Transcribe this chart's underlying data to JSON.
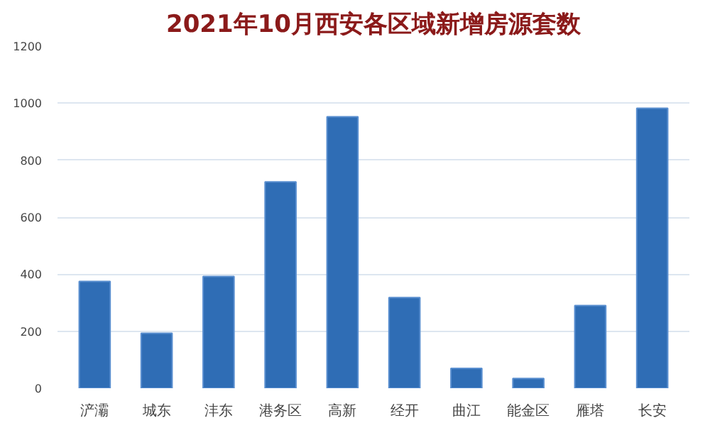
{
  "chart_data": {
    "type": "bar",
    "title": "2021年10月西安各区域新增房源套数",
    "categories": [
      "浐灞",
      "城东",
      "沣东",
      "港务区",
      "高新",
      "经开",
      "曲江",
      "能金区",
      "雁塔",
      "长安"
    ],
    "values": [
      375,
      193,
      392,
      724,
      952,
      318,
      70,
      34,
      290,
      982
    ],
    "color": "#2f6db5",
    "ylim": [
      0,
      1200
    ],
    "yticks": [
      0,
      200,
      400,
      600,
      800,
      1000,
      1200
    ],
    "grid": "y"
  }
}
